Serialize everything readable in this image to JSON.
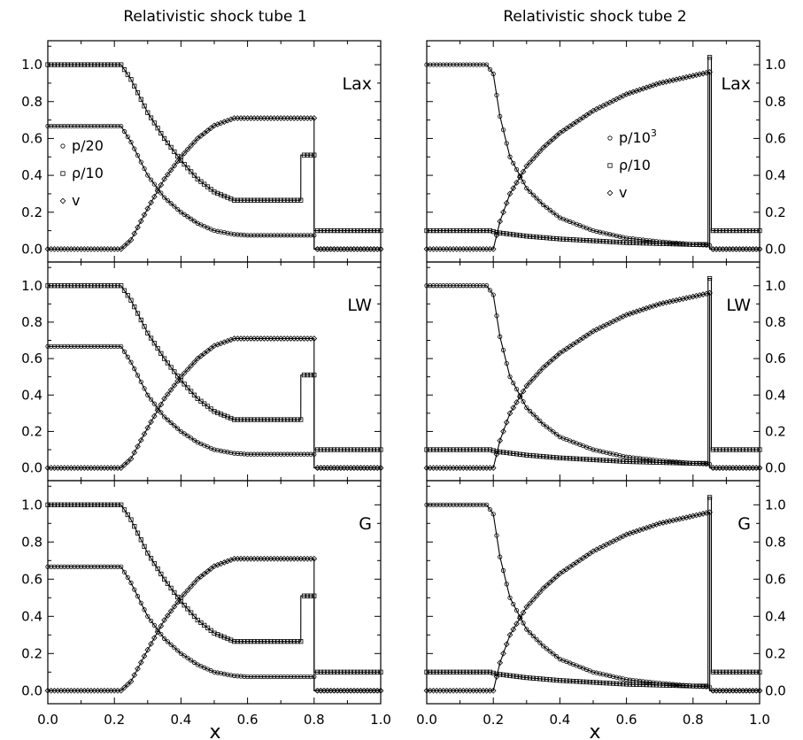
{
  "figure": {
    "titles": [
      "Relativistic shock tube 1",
      "Relativistic shock tube 2"
    ],
    "x_label": "x",
    "x_ticks": [
      "0.0",
      "0.2",
      "0.4",
      "0.6",
      "0.8",
      "1.0"
    ],
    "y_ticks": [
      "0.0",
      "0.2",
      "0.4",
      "0.6",
      "0.8",
      "1.0"
    ],
    "panel_labels": [
      "Lax",
      "LW",
      "G"
    ],
    "legend_tube1": [
      {
        "marker": "circle",
        "label": "p/20"
      },
      {
        "marker": "square",
        "label": "ρ/10"
      },
      {
        "marker": "diamond",
        "label": "v"
      }
    ],
    "legend_tube2": [
      {
        "marker": "circle",
        "label": "p/10",
        "sup": "3"
      },
      {
        "marker": "square",
        "label": "ρ/10"
      },
      {
        "marker": "diamond",
        "label": "v"
      }
    ]
  },
  "chart_data": [
    {
      "type": "line",
      "title": "Relativistic shock tube 1",
      "panel": "Lax",
      "xlabel": "x",
      "xlim": [
        0,
        1
      ],
      "ylim": [
        -0.07,
        1.13
      ],
      "series": [
        {
          "name": "p/20",
          "x": [
            0,
            0.22,
            0.25,
            0.3,
            0.35,
            0.4,
            0.45,
            0.5,
            0.56,
            0.6,
            0.8,
            0.8001,
            1.0
          ],
          "y": [
            0.667,
            0.667,
            0.58,
            0.4,
            0.28,
            0.2,
            0.14,
            0.1,
            0.08,
            0.075,
            0.075,
            0.0,
            0.0
          ]
        },
        {
          "name": "ρ/10",
          "x": [
            0,
            0.22,
            0.25,
            0.3,
            0.35,
            0.4,
            0.45,
            0.5,
            0.56,
            0.76,
            0.7601,
            0.8,
            0.8001,
            1.0
          ],
          "y": [
            1.0,
            1.0,
            0.92,
            0.74,
            0.6,
            0.48,
            0.38,
            0.31,
            0.265,
            0.265,
            0.51,
            0.51,
            0.1,
            0.1
          ]
        },
        {
          "name": "v",
          "x": [
            0,
            0.22,
            0.25,
            0.3,
            0.35,
            0.4,
            0.45,
            0.5,
            0.56,
            0.8,
            0.8001,
            1.0
          ],
          "y": [
            0.0,
            0.0,
            0.05,
            0.22,
            0.38,
            0.5,
            0.6,
            0.67,
            0.71,
            0.71,
            0.0,
            0.0
          ]
        }
      ]
    },
    {
      "type": "line",
      "title": "Relativistic shock tube 1",
      "panel": "LW",
      "xlabel": "x",
      "xlim": [
        0,
        1
      ],
      "ylim": [
        -0.07,
        1.13
      ],
      "series": [
        {
          "name": "p/20",
          "x": [
            0,
            0.22,
            0.25,
            0.3,
            0.35,
            0.4,
            0.45,
            0.5,
            0.56,
            0.6,
            0.8,
            0.8001,
            1.0
          ],
          "y": [
            0.667,
            0.667,
            0.58,
            0.4,
            0.28,
            0.2,
            0.14,
            0.1,
            0.08,
            0.075,
            0.075,
            0.0,
            0.0
          ]
        },
        {
          "name": "ρ/10",
          "x": [
            0,
            0.22,
            0.25,
            0.3,
            0.35,
            0.4,
            0.45,
            0.5,
            0.56,
            0.76,
            0.7601,
            0.8,
            0.8001,
            1.0
          ],
          "y": [
            1.0,
            1.0,
            0.92,
            0.74,
            0.6,
            0.48,
            0.38,
            0.31,
            0.265,
            0.265,
            0.51,
            0.51,
            0.1,
            0.1
          ]
        },
        {
          "name": "v",
          "x": [
            0,
            0.22,
            0.25,
            0.3,
            0.35,
            0.4,
            0.45,
            0.5,
            0.56,
            0.8,
            0.8001,
            1.0
          ],
          "y": [
            0.0,
            0.0,
            0.05,
            0.22,
            0.38,
            0.5,
            0.6,
            0.67,
            0.71,
            0.71,
            0.0,
            0.0
          ]
        }
      ]
    },
    {
      "type": "line",
      "title": "Relativistic shock tube 1",
      "panel": "G",
      "xlabel": "x",
      "xlim": [
        0,
        1
      ],
      "ylim": [
        -0.07,
        1.13
      ],
      "series": [
        {
          "name": "p/20",
          "x": [
            0,
            0.22,
            0.25,
            0.3,
            0.35,
            0.4,
            0.45,
            0.5,
            0.56,
            0.6,
            0.8,
            0.8001,
            1.0
          ],
          "y": [
            0.667,
            0.667,
            0.58,
            0.4,
            0.28,
            0.2,
            0.14,
            0.1,
            0.08,
            0.075,
            0.075,
            0.0,
            0.0
          ]
        },
        {
          "name": "ρ/10",
          "x": [
            0,
            0.22,
            0.25,
            0.3,
            0.35,
            0.4,
            0.45,
            0.5,
            0.56,
            0.76,
            0.7601,
            0.8,
            0.8001,
            1.0
          ],
          "y": [
            1.0,
            1.0,
            0.92,
            0.74,
            0.6,
            0.48,
            0.38,
            0.31,
            0.265,
            0.265,
            0.51,
            0.51,
            0.1,
            0.1
          ]
        },
        {
          "name": "v",
          "x": [
            0,
            0.22,
            0.25,
            0.3,
            0.35,
            0.4,
            0.45,
            0.5,
            0.56,
            0.8,
            0.8001,
            1.0
          ],
          "y": [
            0.0,
            0.0,
            0.05,
            0.22,
            0.38,
            0.5,
            0.6,
            0.67,
            0.71,
            0.71,
            0.0,
            0.0
          ]
        }
      ]
    },
    {
      "type": "line",
      "title": "Relativistic shock tube 2",
      "panel": "Lax",
      "xlabel": "x",
      "xlim": [
        0,
        1
      ],
      "ylim": [
        -0.07,
        1.13
      ],
      "series": [
        {
          "name": "p/10³",
          "x": [
            0,
            0.18,
            0.2,
            0.22,
            0.25,
            0.3,
            0.35,
            0.4,
            0.5,
            0.6,
            0.7,
            0.8,
            0.85,
            0.8501,
            1.0
          ],
          "y": [
            1.0,
            1.0,
            0.95,
            0.72,
            0.5,
            0.33,
            0.24,
            0.17,
            0.1,
            0.06,
            0.04,
            0.025,
            0.02,
            0.0,
            0.0
          ]
        },
        {
          "name": "ρ/10",
          "x": [
            0,
            0.19,
            0.21,
            0.3,
            0.4,
            0.5,
            0.6,
            0.7,
            0.8,
            0.845,
            0.8451,
            0.855,
            0.8551,
            1.0
          ],
          "y": [
            0.1,
            0.1,
            0.09,
            0.07,
            0.055,
            0.045,
            0.035,
            0.03,
            0.025,
            0.025,
            1.04,
            1.04,
            0.1,
            0.1
          ]
        },
        {
          "name": "v",
          "x": [
            0,
            0.2,
            0.22,
            0.25,
            0.3,
            0.35,
            0.4,
            0.5,
            0.6,
            0.7,
            0.8,
            0.85,
            0.8501,
            1.0
          ],
          "y": [
            0.0,
            0.0,
            0.15,
            0.3,
            0.45,
            0.55,
            0.63,
            0.75,
            0.84,
            0.9,
            0.94,
            0.96,
            0.0,
            0.0
          ]
        }
      ]
    },
    {
      "type": "line",
      "title": "Relativistic shock tube 2",
      "panel": "LW",
      "xlabel": "x",
      "xlim": [
        0,
        1
      ],
      "ylim": [
        -0.07,
        1.13
      ],
      "series": [
        {
          "name": "p/10³",
          "x": [
            0,
            0.18,
            0.2,
            0.22,
            0.25,
            0.3,
            0.35,
            0.4,
            0.5,
            0.6,
            0.7,
            0.8,
            0.85,
            0.8501,
            1.0
          ],
          "y": [
            1.0,
            1.0,
            0.95,
            0.72,
            0.5,
            0.33,
            0.24,
            0.17,
            0.1,
            0.06,
            0.04,
            0.025,
            0.02,
            0.0,
            0.0
          ]
        },
        {
          "name": "ρ/10",
          "x": [
            0,
            0.19,
            0.21,
            0.3,
            0.4,
            0.5,
            0.6,
            0.7,
            0.8,
            0.845,
            0.8451,
            0.855,
            0.8551,
            1.0
          ],
          "y": [
            0.1,
            0.1,
            0.09,
            0.07,
            0.055,
            0.045,
            0.035,
            0.03,
            0.025,
            0.025,
            1.04,
            1.04,
            0.1,
            0.1
          ]
        },
        {
          "name": "v",
          "x": [
            0,
            0.2,
            0.22,
            0.25,
            0.3,
            0.35,
            0.4,
            0.5,
            0.6,
            0.7,
            0.8,
            0.85,
            0.8501,
            1.0
          ],
          "y": [
            0.0,
            0.0,
            0.15,
            0.3,
            0.45,
            0.55,
            0.63,
            0.75,
            0.84,
            0.9,
            0.94,
            0.96,
            0.0,
            0.0
          ]
        }
      ]
    },
    {
      "type": "line",
      "title": "Relativistic shock tube 2",
      "panel": "G",
      "xlabel": "x",
      "xlim": [
        0,
        1
      ],
      "ylim": [
        -0.07,
        1.13
      ],
      "series": [
        {
          "name": "p/10³",
          "x": [
            0,
            0.18,
            0.2,
            0.22,
            0.25,
            0.3,
            0.35,
            0.4,
            0.5,
            0.6,
            0.7,
            0.8,
            0.85,
            0.8501,
            1.0
          ],
          "y": [
            1.0,
            1.0,
            0.95,
            0.72,
            0.5,
            0.33,
            0.24,
            0.17,
            0.1,
            0.06,
            0.04,
            0.025,
            0.02,
            0.0,
            0.0
          ]
        },
        {
          "name": "ρ/10",
          "x": [
            0,
            0.19,
            0.21,
            0.3,
            0.4,
            0.5,
            0.6,
            0.7,
            0.8,
            0.845,
            0.8451,
            0.855,
            0.8551,
            1.0
          ],
          "y": [
            0.1,
            0.1,
            0.09,
            0.07,
            0.055,
            0.045,
            0.035,
            0.03,
            0.025,
            0.025,
            1.04,
            1.04,
            0.1,
            0.1
          ]
        },
        {
          "name": "v",
          "x": [
            0,
            0.2,
            0.22,
            0.25,
            0.3,
            0.35,
            0.4,
            0.5,
            0.6,
            0.7,
            0.8,
            0.85,
            0.8501,
            1.0
          ],
          "y": [
            0.0,
            0.0,
            0.15,
            0.3,
            0.45,
            0.55,
            0.63,
            0.75,
            0.84,
            0.9,
            0.94,
            0.96,
            0.0,
            0.0
          ]
        }
      ]
    }
  ]
}
